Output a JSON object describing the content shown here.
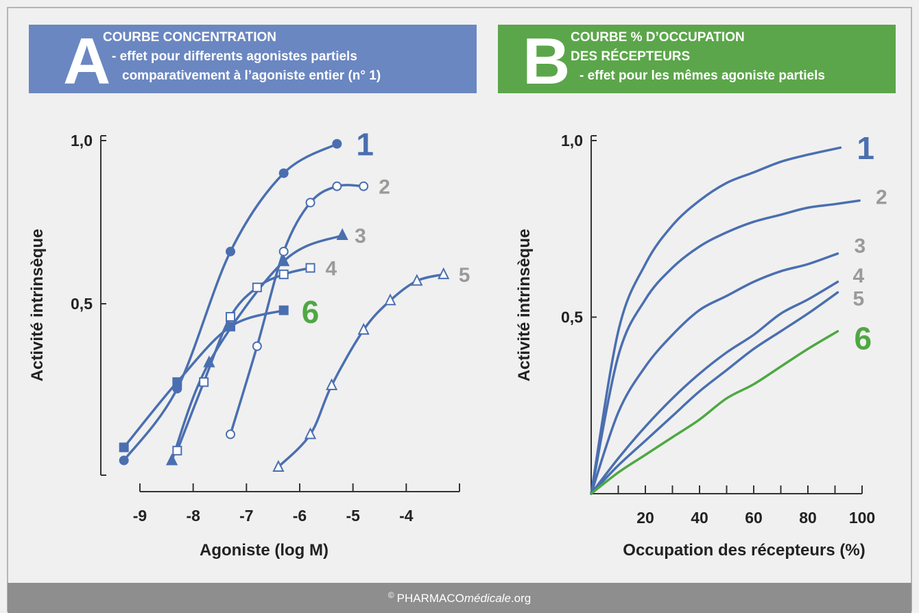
{
  "chart_data": [
    {
      "type": "line",
      "panel": "A",
      "title_lines": [
        "COURBE CONCENTRATION",
        "- effet pour differents agonistes partiels",
        "comparativement à l’agoniste entier (n° 1)"
      ],
      "header_color": "#6b87c1",
      "x_label": "Agoniste (log M)",
      "y_label": "Activité intrinsèque",
      "xlim": [
        -9,
        -3
      ],
      "xticks": [
        -9,
        -8,
        -7,
        -6,
        -5,
        -4
      ],
      "ylim": [
        0,
        1
      ],
      "yticks": [
        {
          "value": 0.5,
          "label": "0,5"
        },
        {
          "value": 1,
          "label": "1,0"
        }
      ],
      "series": [
        {
          "name": "1",
          "color": "#4a6fb0",
          "label_color": "#4a6fb0",
          "marker": "filled-circle",
          "x": [
            -9.3,
            -8.3,
            -7.3,
            -6.3,
            -5.3
          ],
          "values": [
            0.02,
            0.24,
            0.66,
            0.9,
            0.99
          ]
        },
        {
          "name": "2",
          "color": "#4a6fb0",
          "label_color": "#9a9a9a",
          "marker": "open-circle",
          "x": [
            -7.3,
            -6.8,
            -6.3,
            -5.8,
            -5.3,
            -4.8
          ],
          "values": [
            0.1,
            0.37,
            0.66,
            0.81,
            0.86,
            0.86
          ]
        },
        {
          "name": "3",
          "color": "#4a6fb0",
          "label_color": "#9a9a9a",
          "marker": "filled-triangle",
          "x": [
            -8.4,
            -7.7,
            -6.3,
            -5.2
          ],
          "values": [
            0.02,
            0.32,
            0.63,
            0.71
          ]
        },
        {
          "name": "4",
          "color": "#4a6fb0",
          "label_color": "#9a9a9a",
          "marker": "open-square",
          "x": [
            -8.3,
            -7.8,
            -7.3,
            -6.8,
            -6.3,
            -5.8
          ],
          "values": [
            0.05,
            0.26,
            0.46,
            0.55,
            0.59,
            0.61
          ]
        },
        {
          "name": "5",
          "color": "#4a6fb0",
          "label_color": "#9a9a9a",
          "marker": "open-triangle",
          "x": [
            -6.4,
            -5.8,
            -5.4,
            -4.8,
            -4.3,
            -3.8,
            -3.3
          ],
          "values": [
            0.0,
            0.1,
            0.25,
            0.42,
            0.51,
            0.57,
            0.59
          ]
        },
        {
          "name": "6",
          "color": "#4a6fb0",
          "label_color": "#4ea843",
          "marker": "filled-square",
          "x": [
            -9.3,
            -8.3,
            -7.3,
            -6.3
          ],
          "values": [
            0.06,
            0.26,
            0.43,
            0.48
          ]
        }
      ]
    },
    {
      "type": "line",
      "panel": "B",
      "title_lines": [
        "COURBE % D’OCCUPATION",
        "DES RÉCEPTEURS",
        "- effet pour les mêmes agoniste partiels"
      ],
      "header_color": "#5ba64a",
      "x_label": "Occupation des récepteurs (%)",
      "y_label": "Activité intrinsèque",
      "xlim": [
        0,
        100
      ],
      "xticks": [
        20,
        40,
        60,
        80,
        100
      ],
      "xminor_ticks": [
        10,
        30,
        50,
        70,
        90
      ],
      "ylim": [
        0,
        1
      ],
      "yticks": [
        {
          "value": 0.5,
          "label": "0,5"
        },
        {
          "value": 1,
          "label": "1,0"
        }
      ],
      "series": [
        {
          "name": "1",
          "color": "#4a6fb0",
          "label_color": "#4a6fb0",
          "x": [
            0,
            10,
            20,
            30,
            40,
            50,
            60,
            70,
            80,
            92
          ],
          "values": [
            0,
            0.46,
            0.65,
            0.76,
            0.83,
            0.88,
            0.91,
            0.94,
            0.96,
            0.98
          ]
        },
        {
          "name": "2",
          "color": "#4a6fb0",
          "label_color": "#9a9a9a",
          "x": [
            0,
            10,
            20,
            30,
            40,
            50,
            60,
            70,
            80,
            90,
            99
          ],
          "values": [
            0,
            0.39,
            0.55,
            0.64,
            0.7,
            0.74,
            0.77,
            0.79,
            0.81,
            0.82,
            0.83
          ]
        },
        {
          "name": "3",
          "color": "#4a6fb0",
          "label_color": "#9a9a9a",
          "x": [
            0,
            10,
            20,
            30,
            40,
            50,
            60,
            70,
            80,
            91
          ],
          "values": [
            0,
            0.23,
            0.36,
            0.45,
            0.52,
            0.56,
            0.6,
            0.63,
            0.65,
            0.68
          ]
        },
        {
          "name": "4",
          "color": "#4a6fb0",
          "label_color": "#9a9a9a",
          "x": [
            0,
            10,
            20,
            30,
            40,
            50,
            60,
            70,
            80,
            91
          ],
          "values": [
            0,
            0.1,
            0.19,
            0.27,
            0.34,
            0.4,
            0.45,
            0.51,
            0.55,
            0.6
          ]
        },
        {
          "name": "5",
          "color": "#4a6fb0",
          "label_color": "#9a9a9a",
          "x": [
            0,
            10,
            20,
            30,
            40,
            50,
            60,
            70,
            80,
            91
          ],
          "values": [
            0,
            0.08,
            0.15,
            0.22,
            0.29,
            0.35,
            0.41,
            0.46,
            0.51,
            0.57
          ]
        },
        {
          "name": "6",
          "color": "#4ea843",
          "label_color": "#4ea843",
          "x": [
            0,
            10,
            20,
            30,
            40,
            50,
            60,
            70,
            80,
            91
          ],
          "values": [
            0,
            0.06,
            0.11,
            0.16,
            0.21,
            0.27,
            0.31,
            0.36,
            0.41,
            0.46
          ]
        }
      ]
    }
  ],
  "footer": {
    "prefix": "©",
    "brand": "PHARMACO",
    "brand_italic": "médicale",
    "suffix": ".org"
  }
}
